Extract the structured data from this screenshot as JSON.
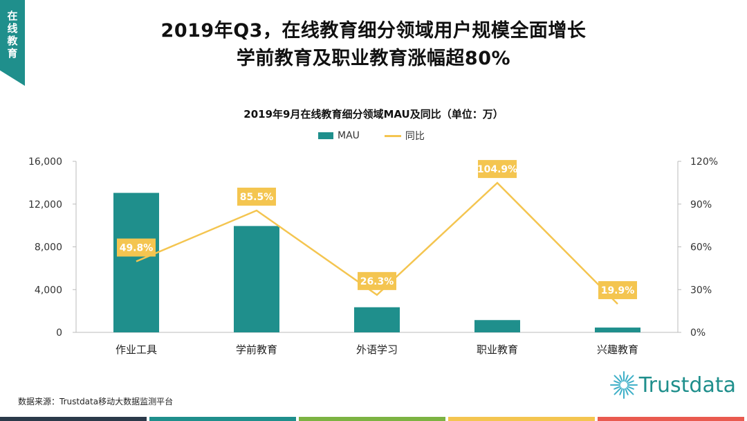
{
  "side_tab": {
    "chars": [
      "在",
      "线",
      "教",
      "育"
    ]
  },
  "header": {
    "title_line1": "2019年Q3，在线教育细分领域用户规模全面增长",
    "title_line2": "学前教育及职业教育涨幅超80%"
  },
  "chart_data": {
    "type": "bar",
    "title": "2019年9月在线教育细分领域MAU及同比（单位：万）",
    "categories": [
      "作业工具",
      "学前教育",
      "外语学习",
      "职业教育",
      "兴趣教育"
    ],
    "series": [
      {
        "name": "MAU",
        "type": "bar",
        "axis": "left",
        "values": [
          13050,
          9950,
          2350,
          1150,
          450
        ]
      },
      {
        "name": "同比",
        "type": "line",
        "axis": "right",
        "values": [
          49.8,
          85.5,
          26.3,
          104.9,
          19.9
        ]
      }
    ],
    "data_labels": [
      "49.8%",
      "85.5%",
      "26.3%",
      "104.9%",
      "19.9%"
    ],
    "y_left": {
      "min": 0,
      "max": 16000,
      "ticks": [
        0,
        4000,
        8000,
        12000,
        16000
      ],
      "tick_labels": [
        "0",
        "4,000",
        "8,000",
        "12,000",
        "16,000"
      ]
    },
    "y_right": {
      "min": 0,
      "max": 120,
      "ticks": [
        0,
        30,
        60,
        90,
        120
      ],
      "tick_labels": [
        "0%",
        "30%",
        "60%",
        "90%",
        "120%"
      ]
    },
    "grid": false,
    "legend_position": "top-center",
    "colors": {
      "bar": "#1f8f8c",
      "line": "#f4c550",
      "label_bg": "#f4c550"
    }
  },
  "legend": {
    "mau_label": "MAU",
    "yoy_label": "同比"
  },
  "footer": {
    "source": "数据来源：Trustdata移动大数据监测平台",
    "logo_text": "Trustdata",
    "bar_colors": [
      "#2b3a4a",
      "#1f8f8c",
      "#7cb342",
      "#f4c550",
      "#e95a4f"
    ]
  }
}
